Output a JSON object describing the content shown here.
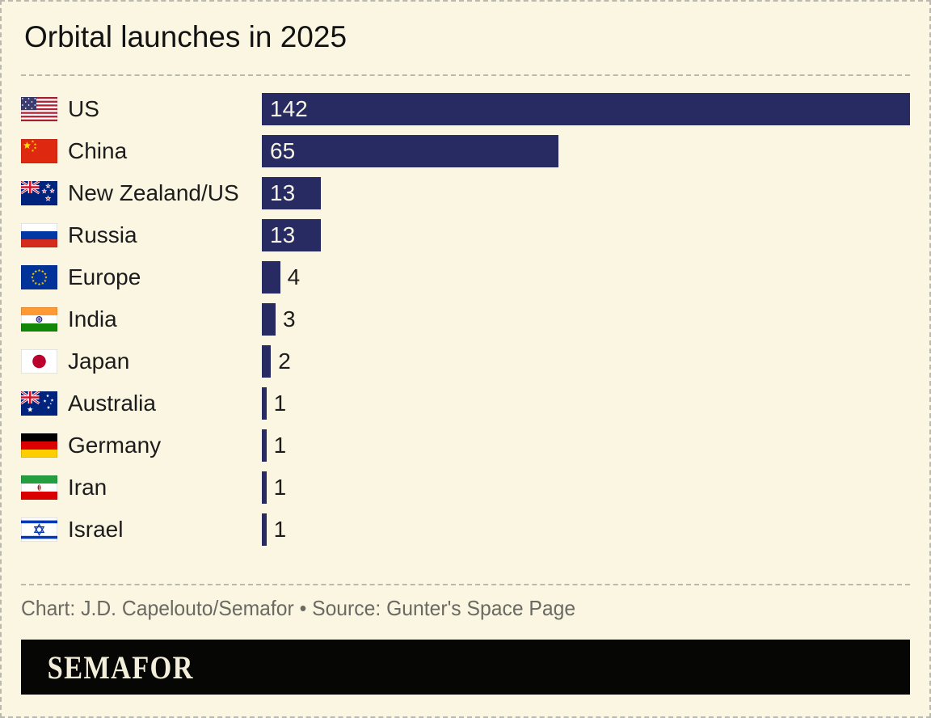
{
  "title": "Orbital launches in 2025",
  "footer": {
    "credit": "Chart: J.D. Capelouto/Semafor • Source: Gunter's Space Page"
  },
  "logo": {
    "text": "SEMAFOR"
  },
  "colors": {
    "background": "#faf6e1",
    "bar": "#272b62",
    "bar_value_text": "#f7f3e2",
    "label_text": "#1c1c1c",
    "credit_text": "#6a6a63",
    "divider": "#b9b9b0",
    "logo_background": "#060604",
    "logo_text": "#f3eed9"
  },
  "chart_data": {
    "type": "bar",
    "orientation": "horizontal",
    "title": "Orbital launches in 2025",
    "categories": [
      "US",
      "China",
      "New Zealand/US",
      "Russia",
      "Europe",
      "India",
      "Japan",
      "Australia",
      "Germany",
      "Iran",
      "Israel"
    ],
    "values": [
      142,
      65,
      13,
      13,
      4,
      3,
      2,
      1,
      1,
      1,
      1
    ],
    "flags": [
      "us",
      "china",
      "new-zealand",
      "russia",
      "europe",
      "india",
      "japan",
      "australia",
      "germany",
      "iran",
      "israel"
    ],
    "xlim": [
      0,
      142
    ],
    "grid": false,
    "legend": "none",
    "value_labels": "inside bar when wide, outside when narrow"
  }
}
